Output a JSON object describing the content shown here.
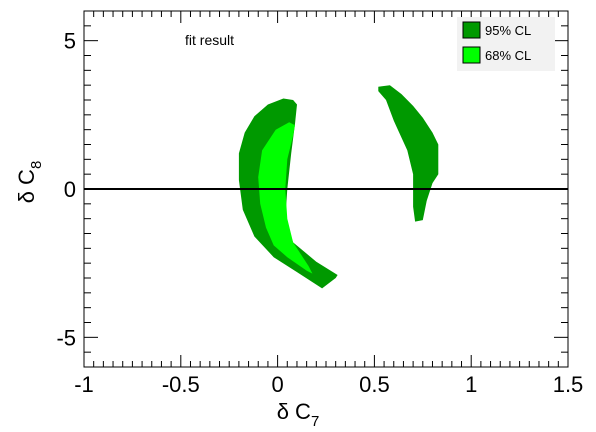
{
  "chart_data": {
    "type": "contour",
    "title": "",
    "annotation": "fit result",
    "xlabel": "δ C",
    "xlabel_sub": "7",
    "ylabel": "δ C",
    "ylabel_sub": "8",
    "xlim": [
      -1,
      1.5
    ],
    "ylim": [
      -6,
      6
    ],
    "x_ticks": [
      -1,
      -0.5,
      0,
      0.5,
      1,
      1.5
    ],
    "x_tick_labels": [
      "-1",
      "-0.5",
      "0",
      "0.5",
      "1",
      "1.5"
    ],
    "y_ticks": [
      -5,
      0,
      5
    ],
    "y_tick_labels": [
      "-5",
      "0",
      "5"
    ],
    "x_minor_step": 0.05,
    "y_minor_step": 0.5,
    "grid": false,
    "reference_line": {
      "y": 0,
      "color": "#000000"
    },
    "legend": {
      "placement": "top-right",
      "entries": [
        {
          "label": "95% CL",
          "color": "#009900"
        },
        {
          "label": "68% CL",
          "color": "#00ff00"
        }
      ]
    },
    "series": [
      {
        "name": "95% CL",
        "color": "#009900",
        "regions": [
          [
            [
              0.03,
              3.05
            ],
            [
              -0.05,
              2.85
            ],
            [
              -0.12,
              2.45
            ],
            [
              -0.17,
              1.9
            ],
            [
              -0.2,
              1.2
            ],
            [
              -0.2,
              0.3
            ],
            [
              -0.18,
              -0.7
            ],
            [
              -0.12,
              -1.6
            ],
            [
              -0.02,
              -2.3
            ],
            [
              0.1,
              -2.8
            ],
            [
              0.23,
              -3.35
            ],
            [
              0.3,
              -3.0
            ],
            [
              0.31,
              -2.9
            ],
            [
              0.2,
              -2.45
            ],
            [
              0.08,
              -1.8
            ],
            [
              0.04,
              -1.0
            ],
            [
              0.05,
              0.0
            ],
            [
              0.07,
              1.2
            ],
            [
              0.09,
              2.2
            ],
            [
              0.1,
              2.85
            ],
            [
              0.08,
              3.0
            ]
          ],
          [
            [
              0.52,
              3.45
            ],
            [
              0.52,
              3.3
            ],
            [
              0.56,
              3.0
            ],
            [
              0.6,
              2.3
            ],
            [
              0.67,
              1.3
            ],
            [
              0.7,
              0.5
            ],
            [
              0.7,
              -0.6
            ],
            [
              0.71,
              -1.1
            ],
            [
              0.75,
              -1.05
            ],
            [
              0.77,
              -0.4
            ],
            [
              0.8,
              0.2
            ],
            [
              0.83,
              0.5
            ],
            [
              0.83,
              1.5
            ],
            [
              0.8,
              1.9
            ],
            [
              0.75,
              2.4
            ],
            [
              0.7,
              2.8
            ],
            [
              0.64,
              3.2
            ],
            [
              0.58,
              3.5
            ]
          ]
        ]
      },
      {
        "name": "68% CL",
        "color": "#00ff00",
        "regions": [
          [
            [
              0.06,
              2.25
            ],
            [
              -0.01,
              2.0
            ],
            [
              -0.08,
              1.3
            ],
            [
              -0.1,
              0.4
            ],
            [
              -0.09,
              -0.5
            ],
            [
              -0.06,
              -1.3
            ],
            [
              -0.02,
              -1.9
            ],
            [
              0.05,
              -2.3
            ],
            [
              0.15,
              -2.75
            ],
            [
              0.18,
              -2.85
            ],
            [
              0.16,
              -2.6
            ],
            [
              0.08,
              -1.8
            ],
            [
              0.05,
              -1.0
            ],
            [
              0.04,
              0.0
            ],
            [
              0.05,
              1.0
            ],
            [
              0.08,
              1.8
            ],
            [
              0.09,
              2.15
            ]
          ]
        ]
      }
    ]
  }
}
